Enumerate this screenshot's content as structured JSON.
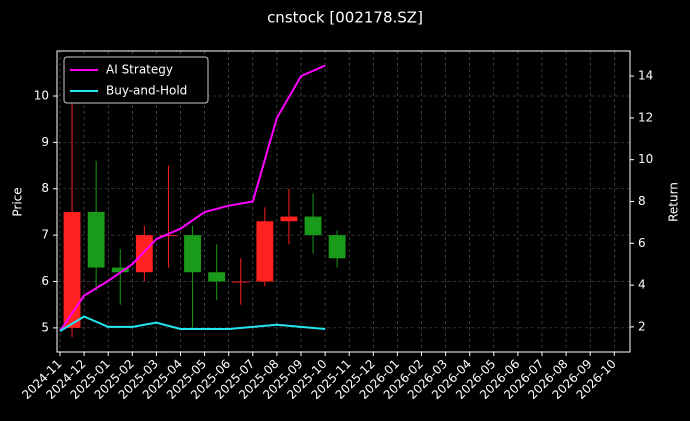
{
  "chart_data": {
    "type": "candlestick",
    "title": "cnstock [002178.SZ]",
    "ylabel": "Price",
    "y2label": "Return",
    "x": [
      "2024-11",
      "2024-12",
      "2025-01",
      "2025-02",
      "2025-03",
      "2025-04",
      "2025-05",
      "2025-06",
      "2025-07",
      "2025-08",
      "2025-09",
      "2025-10"
    ],
    "open": [
      5.0,
      7.5,
      6.3,
      6.2,
      7.0,
      7.0,
      6.2,
      6.0,
      6.0,
      7.3,
      7.4,
      7.0
    ],
    "high": [
      10.2,
      8.6,
      6.7,
      7.2,
      8.5,
      7.2,
      6.8,
      6.5,
      7.6,
      8.0,
      7.9,
      7.1
    ],
    "low": [
      4.8,
      5.8,
      5.5,
      6.0,
      6.3,
      5.0,
      5.6,
      5.5,
      5.9,
      6.8,
      6.6,
      6.3
    ],
    "close": [
      7.5,
      6.3,
      6.2,
      7.0,
      7.0,
      6.2,
      6.0,
      6.0,
      7.3,
      7.4,
      7.0,
      6.5
    ],
    "up_color": "#ff2020",
    "down_color": "#1a9a1a",
    "series": [
      {
        "name": "AI Strategy",
        "color": "#ff00ff",
        "axis": "y2",
        "values": [
          1.8,
          3.5,
          4.2,
          5.0,
          6.2,
          6.7,
          7.5,
          7.8,
          8.0,
          12.0,
          14.0,
          14.5
        ]
      },
      {
        "name": "Buy-and-Hold",
        "color": "#22e6f0",
        "axis": "y2",
        "values": [
          1.8,
          2.5,
          2.0,
          2.0,
          2.2,
          1.9,
          1.9,
          1.9,
          2.0,
          2.1,
          2.0,
          1.9
        ]
      }
    ],
    "xticks": [
      "2024-11",
      "2024-12",
      "2025-01",
      "2025-02",
      "2025-03",
      "2025-04",
      "2025-05",
      "2025-06",
      "2025-07",
      "2025-08",
      "2025-09",
      "2025-10",
      "2025-11",
      "2025-12",
      "2026-01",
      "2026-02",
      "2026-03",
      "2026-04",
      "2026-05",
      "2026-06",
      "2026-07",
      "2026-08",
      "2026-09",
      "2026-10"
    ],
    "ylim": [
      4.48,
      10.97
    ],
    "yticks": [
      5,
      6,
      7,
      8,
      9,
      10
    ],
    "y2lim": [
      0.8,
      15.2
    ],
    "y2ticks": [
      2,
      4,
      6,
      8,
      10,
      12,
      14
    ],
    "grid": true,
    "legend": "upper-left"
  }
}
